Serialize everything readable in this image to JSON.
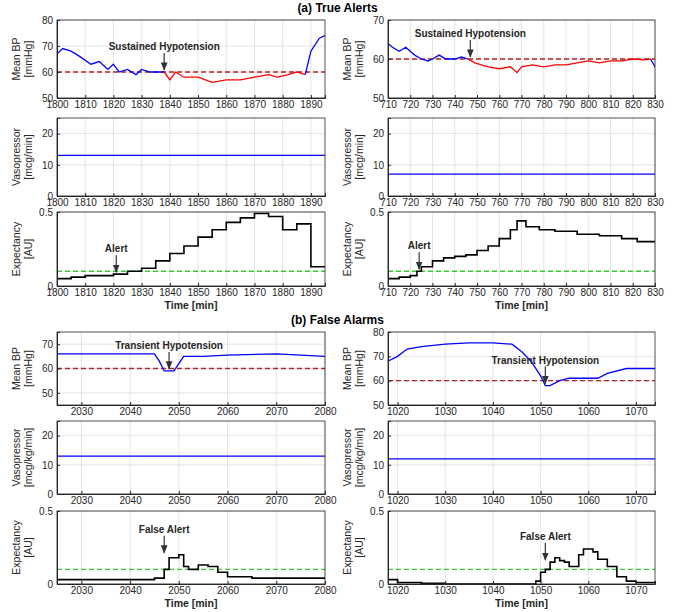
{
  "sections": [
    "(a) True Alerts",
    "(b) False Alarms"
  ],
  "chart_data": [
    {
      "type": "line",
      "y_label": "Mean BP [mmHg]",
      "xlim": [
        1800,
        1895
      ],
      "xticks": [
        1800,
        1810,
        1820,
        1830,
        1840,
        1850,
        1860,
        1870,
        1880,
        1890
      ],
      "ylim": [
        50,
        80
      ],
      "yticks": [
        50,
        60,
        70,
        80
      ],
      "grid": true,
      "x": [
        1800,
        1802,
        1805,
        1808,
        1812,
        1815,
        1818,
        1820,
        1822,
        1825,
        1828,
        1830,
        1833,
        1836,
        1838,
        1840,
        1842,
        1845,
        1850,
        1855,
        1860,
        1865,
        1870,
        1875,
        1878,
        1882,
        1885,
        1888,
        1890,
        1893,
        1895
      ],
      "series": [
        {
          "color": "#0000ff",
          "values": [
            67,
            69,
            68,
            66,
            63,
            64,
            61,
            63,
            60,
            61,
            59,
            61,
            60,
            60,
            60,
            null,
            null,
            null,
            null,
            null,
            null,
            null,
            null,
            null,
            null,
            null,
            null,
            59,
            68,
            73,
            74
          ]
        },
        {
          "color": "#ff0000",
          "values": [
            null,
            null,
            null,
            null,
            null,
            null,
            null,
            null,
            null,
            null,
            null,
            null,
            null,
            null,
            60,
            57,
            60,
            58,
            58,
            56,
            57,
            57,
            58,
            59,
            58,
            59,
            60,
            59,
            null,
            null,
            null
          ]
        }
      ],
      "hlines": [
        {
          "value": 60,
          "color": "#b22222",
          "line_style": "dashed"
        }
      ],
      "annotations": [
        {
          "text": "Sustained Hypotension",
          "x": 1838,
          "y": 60
        }
      ]
    },
    {
      "type": "line",
      "y_label": "Vasopressor [mcg/min]",
      "xlim": [
        1800,
        1895
      ],
      "xticks": [
        1800,
        1810,
        1820,
        1830,
        1840,
        1850,
        1860,
        1870,
        1880,
        1890
      ],
      "ylim": [
        0,
        25
      ],
      "yticks": [
        0,
        10,
        20
      ],
      "grid": true,
      "x": [
        1800,
        1895
      ],
      "series": [
        {
          "color": "#0000ff",
          "values": [
            13,
            13
          ]
        }
      ]
    },
    {
      "type": "line",
      "y_label": "Expectancy [AU]",
      "x_label": "Time [min]",
      "xlim": [
        1800,
        1895
      ],
      "xticks": [
        1800,
        1810,
        1820,
        1830,
        1840,
        1850,
        1860,
        1870,
        1880,
        1890
      ],
      "ylim": [
        0,
        0.5
      ],
      "yticks": [
        0,
        0.5
      ],
      "grid": true,
      "x": [
        1800,
        1805,
        1810,
        1815,
        1820,
        1825,
        1830,
        1835,
        1840,
        1845,
        1850,
        1855,
        1860,
        1865,
        1870,
        1875,
        1880,
        1885,
        1890,
        1895
      ],
      "series": [
        {
          "type": "step",
          "color": "#000000",
          "values": [
            0.05,
            0.06,
            0.07,
            0.07,
            0.08,
            0.1,
            0.12,
            0.17,
            0.22,
            0.27,
            0.33,
            0.38,
            0.43,
            0.46,
            0.49,
            0.47,
            0.38,
            0.42,
            0.13,
            0.13
          ]
        }
      ],
      "hlines": [
        {
          "value": 0.1,
          "color": "#33cc33",
          "line_style": "dashed"
        }
      ],
      "annotations": [
        {
          "text": "Alert",
          "x": 1821,
          "y": 0.08
        }
      ]
    },
    {
      "type": "line",
      "y_label": "Mean BP [mmHg]",
      "xlim": [
        710,
        830
      ],
      "xticks": [
        710,
        720,
        730,
        740,
        750,
        760,
        770,
        780,
        790,
        800,
        810,
        820,
        830
      ],
      "ylim": [
        50,
        70
      ],
      "yticks": [
        50,
        60,
        70
      ],
      "grid": true,
      "x": [
        710,
        712,
        715,
        718,
        720,
        722,
        725,
        728,
        730,
        733,
        736,
        740,
        743,
        746,
        749,
        752,
        755,
        760,
        765,
        768,
        770,
        775,
        780,
        785,
        790,
        795,
        800,
        805,
        810,
        815,
        820,
        825,
        828,
        830
      ],
      "series": [
        {
          "color": "#0000ff",
          "values": [
            64,
            63,
            62,
            63,
            62,
            61,
            60,
            59.5,
            60,
            61,
            60,
            60,
            60.5,
            60,
            null,
            null,
            null,
            null,
            null,
            null,
            null,
            null,
            null,
            null,
            null,
            null,
            null,
            null,
            null,
            null,
            null,
            null,
            60,
            58
          ]
        },
        {
          "color": "#ff0000",
          "values": [
            null,
            null,
            null,
            null,
            null,
            null,
            null,
            null,
            null,
            null,
            null,
            null,
            null,
            60,
            59,
            58.5,
            58,
            57.5,
            58,
            56.5,
            58,
            58.5,
            58,
            58.5,
            58.5,
            59,
            59.5,
            59,
            59.5,
            59.5,
            60,
            59.8,
            60,
            null
          ]
        }
      ],
      "hlines": [
        {
          "value": 60,
          "color": "#b22222",
          "line_style": "dashed"
        }
      ],
      "annotations": [
        {
          "text": "Sustained Hypotension",
          "x": 747,
          "y": 60
        }
      ]
    },
    {
      "type": "line",
      "y_label": "Vasopressor [mcg/min]",
      "xlim": [
        710,
        830
      ],
      "xticks": [
        710,
        720,
        730,
        740,
        750,
        760,
        770,
        780,
        790,
        800,
        810,
        820,
        830
      ],
      "ylim": [
        0,
        25
      ],
      "yticks": [
        0,
        10,
        20
      ],
      "grid": true,
      "x": [
        710,
        830
      ],
      "series": [
        {
          "color": "#0000ff",
          "values": [
            7,
            7
          ]
        }
      ]
    },
    {
      "type": "line",
      "y_label": "Expectancy [AU]",
      "x_label": "Time [min]",
      "xlim": [
        710,
        830
      ],
      "xticks": [
        710,
        720,
        730,
        740,
        750,
        760,
        770,
        780,
        790,
        800,
        810,
        820,
        830
      ],
      "ylim": [
        0,
        0.5
      ],
      "yticks": [
        0,
        0.5
      ],
      "grid": true,
      "x": [
        710,
        715,
        720,
        723,
        725,
        730,
        735,
        740,
        745,
        750,
        755,
        760,
        765,
        768,
        772,
        778,
        785,
        795,
        805,
        815,
        822,
        830
      ],
      "series": [
        {
          "type": "step",
          "color": "#000000",
          "values": [
            0.05,
            0.06,
            0.07,
            0.1,
            0.13,
            0.17,
            0.19,
            0.2,
            0.21,
            0.24,
            0.27,
            0.32,
            0.38,
            0.44,
            0.4,
            0.38,
            0.37,
            0.35,
            0.34,
            0.32,
            0.3,
            0.3
          ]
        }
      ],
      "hlines": [
        {
          "value": 0.1,
          "color": "#33cc33",
          "line_style": "dashed"
        }
      ],
      "annotations": [
        {
          "text": "Alert",
          "x": 724,
          "y": 0.1
        }
      ]
    },
    {
      "type": "line",
      "y_label": "Mean BP [mmHg]",
      "xlim": [
        2025,
        2080
      ],
      "xticks": [
        2030,
        2040,
        2050,
        2060,
        2070,
        2080
      ],
      "ylim": [
        45,
        75
      ],
      "yticks": [
        50,
        60,
        70
      ],
      "grid": true,
      "x": [
        2025,
        2030,
        2040,
        2045,
        2046,
        2047,
        2049,
        2050,
        2051,
        2055,
        2060,
        2070,
        2080
      ],
      "series": [
        {
          "color": "#0000ff",
          "values": [
            66,
            66,
            66,
            66,
            63,
            59,
            59,
            62,
            65,
            65,
            65.5,
            66,
            65
          ]
        }
      ],
      "hlines": [
        {
          "value": 60,
          "color": "#b22222",
          "line_style": "dashed"
        }
      ],
      "annotations": [
        {
          "text": "Transient Hypotension",
          "x": 2048,
          "y": 59
        }
      ]
    },
    {
      "type": "line",
      "y_label": "Vasopressor [mcg/kg/min]",
      "xlim": [
        2025,
        2080
      ],
      "xticks": [
        2030,
        2040,
        2050,
        2060,
        2070,
        2080
      ],
      "ylim": [
        0,
        25
      ],
      "yticks": [
        0,
        10,
        20
      ],
      "grid": true,
      "x": [
        2025,
        2080
      ],
      "series": [
        {
          "color": "#0000ff",
          "values": [
            13,
            13
          ]
        }
      ]
    },
    {
      "type": "line",
      "y_label": "Expectancy [AU]",
      "x_label": "Time [min]",
      "xlim": [
        2025,
        2080
      ],
      "xticks": [
        2030,
        2040,
        2050,
        2060,
        2070,
        2080
      ],
      "ylim": [
        0,
        0.5
      ],
      "yticks": [
        0,
        0.5
      ],
      "grid": true,
      "x": [
        2025,
        2030,
        2040,
        2045,
        2047,
        2048,
        2050,
        2051,
        2052,
        2054,
        2056,
        2058,
        2060,
        2065,
        2080
      ],
      "series": [
        {
          "type": "step",
          "color": "#000000",
          "values": [
            0.03,
            0.03,
            0.03,
            0.04,
            0.1,
            0.18,
            0.2,
            0.12,
            0.1,
            0.13,
            0.12,
            0.08,
            0.05,
            0.04,
            0.04
          ]
        }
      ],
      "hlines": [
        {
          "value": 0.1,
          "color": "#33cc33",
          "line_style": "dashed"
        }
      ],
      "annotations": [
        {
          "text": "False Alert",
          "x": 2047,
          "y": 0.2
        }
      ]
    },
    {
      "type": "line",
      "y_label": "Mean BP [mmHg]",
      "xlim": [
        1018,
        1074
      ],
      "xticks": [
        1020,
        1030,
        1040,
        1050,
        1060,
        1070
      ],
      "ylim": [
        50,
        80
      ],
      "yticks": [
        50,
        60,
        70,
        80
      ],
      "grid": true,
      "x": [
        1018,
        1020,
        1022,
        1025,
        1030,
        1035,
        1040,
        1044,
        1046,
        1048,
        1050,
        1051,
        1052,
        1054,
        1056,
        1060,
        1062,
        1064,
        1068,
        1074
      ],
      "series": [
        {
          "color": "#0000ff",
          "values": [
            68,
            70,
            73,
            74,
            75,
            75.5,
            75.5,
            75,
            72,
            68,
            62,
            58,
            58,
            60,
            61,
            61,
            61,
            63,
            65,
            65
          ]
        }
      ],
      "hlines": [
        {
          "value": 60,
          "color": "#b22222",
          "line_style": "dashed"
        }
      ],
      "annotations": [
        {
          "text": "Transient Hypotension",
          "x": 1051,
          "y": 58
        }
      ]
    },
    {
      "type": "line",
      "y_label": "Vasopressor [mcg/kg/min]",
      "xlim": [
        1018,
        1074
      ],
      "xticks": [
        1020,
        1030,
        1040,
        1050,
        1060,
        1070
      ],
      "ylim": [
        0,
        25
      ],
      "yticks": [
        0,
        10,
        20
      ],
      "grid": true,
      "x": [
        1018,
        1074
      ],
      "series": [
        {
          "color": "#0000ff",
          "values": [
            12,
            12
          ]
        }
      ]
    },
    {
      "type": "line",
      "y_label": "Expectancy [AU]",
      "x_label": "Time [min]",
      "xlim": [
        1018,
        1074
      ],
      "xticks": [
        1020,
        1030,
        1040,
        1050,
        1060,
        1070
      ],
      "ylim": [
        0,
        0.5
      ],
      "yticks": [
        0,
        0.5
      ],
      "grid": true,
      "x": [
        1018,
        1020,
        1025,
        1030,
        1045,
        1049,
        1050,
        1051,
        1052,
        1053,
        1054,
        1055,
        1056,
        1058,
        1059,
        1061,
        1062,
        1064,
        1066,
        1068,
        1070,
        1074
      ],
      "series": [
        {
          "type": "step",
          "color": "#000000",
          "values": [
            0.03,
            0.01,
            0.005,
            0,
            0,
            0.02,
            0.08,
            0.1,
            0.15,
            0.18,
            0.16,
            0.15,
            0.12,
            0.2,
            0.24,
            0.22,
            0.17,
            0.12,
            0.05,
            0.02,
            0.01,
            0.01
          ]
        }
      ],
      "hlines": [
        {
          "value": 0.1,
          "color": "#33cc33",
          "line_style": "dashed"
        }
      ],
      "annotations": [
        {
          "text": "False Alert",
          "x": 1051,
          "y": 0.15
        }
      ]
    }
  ]
}
